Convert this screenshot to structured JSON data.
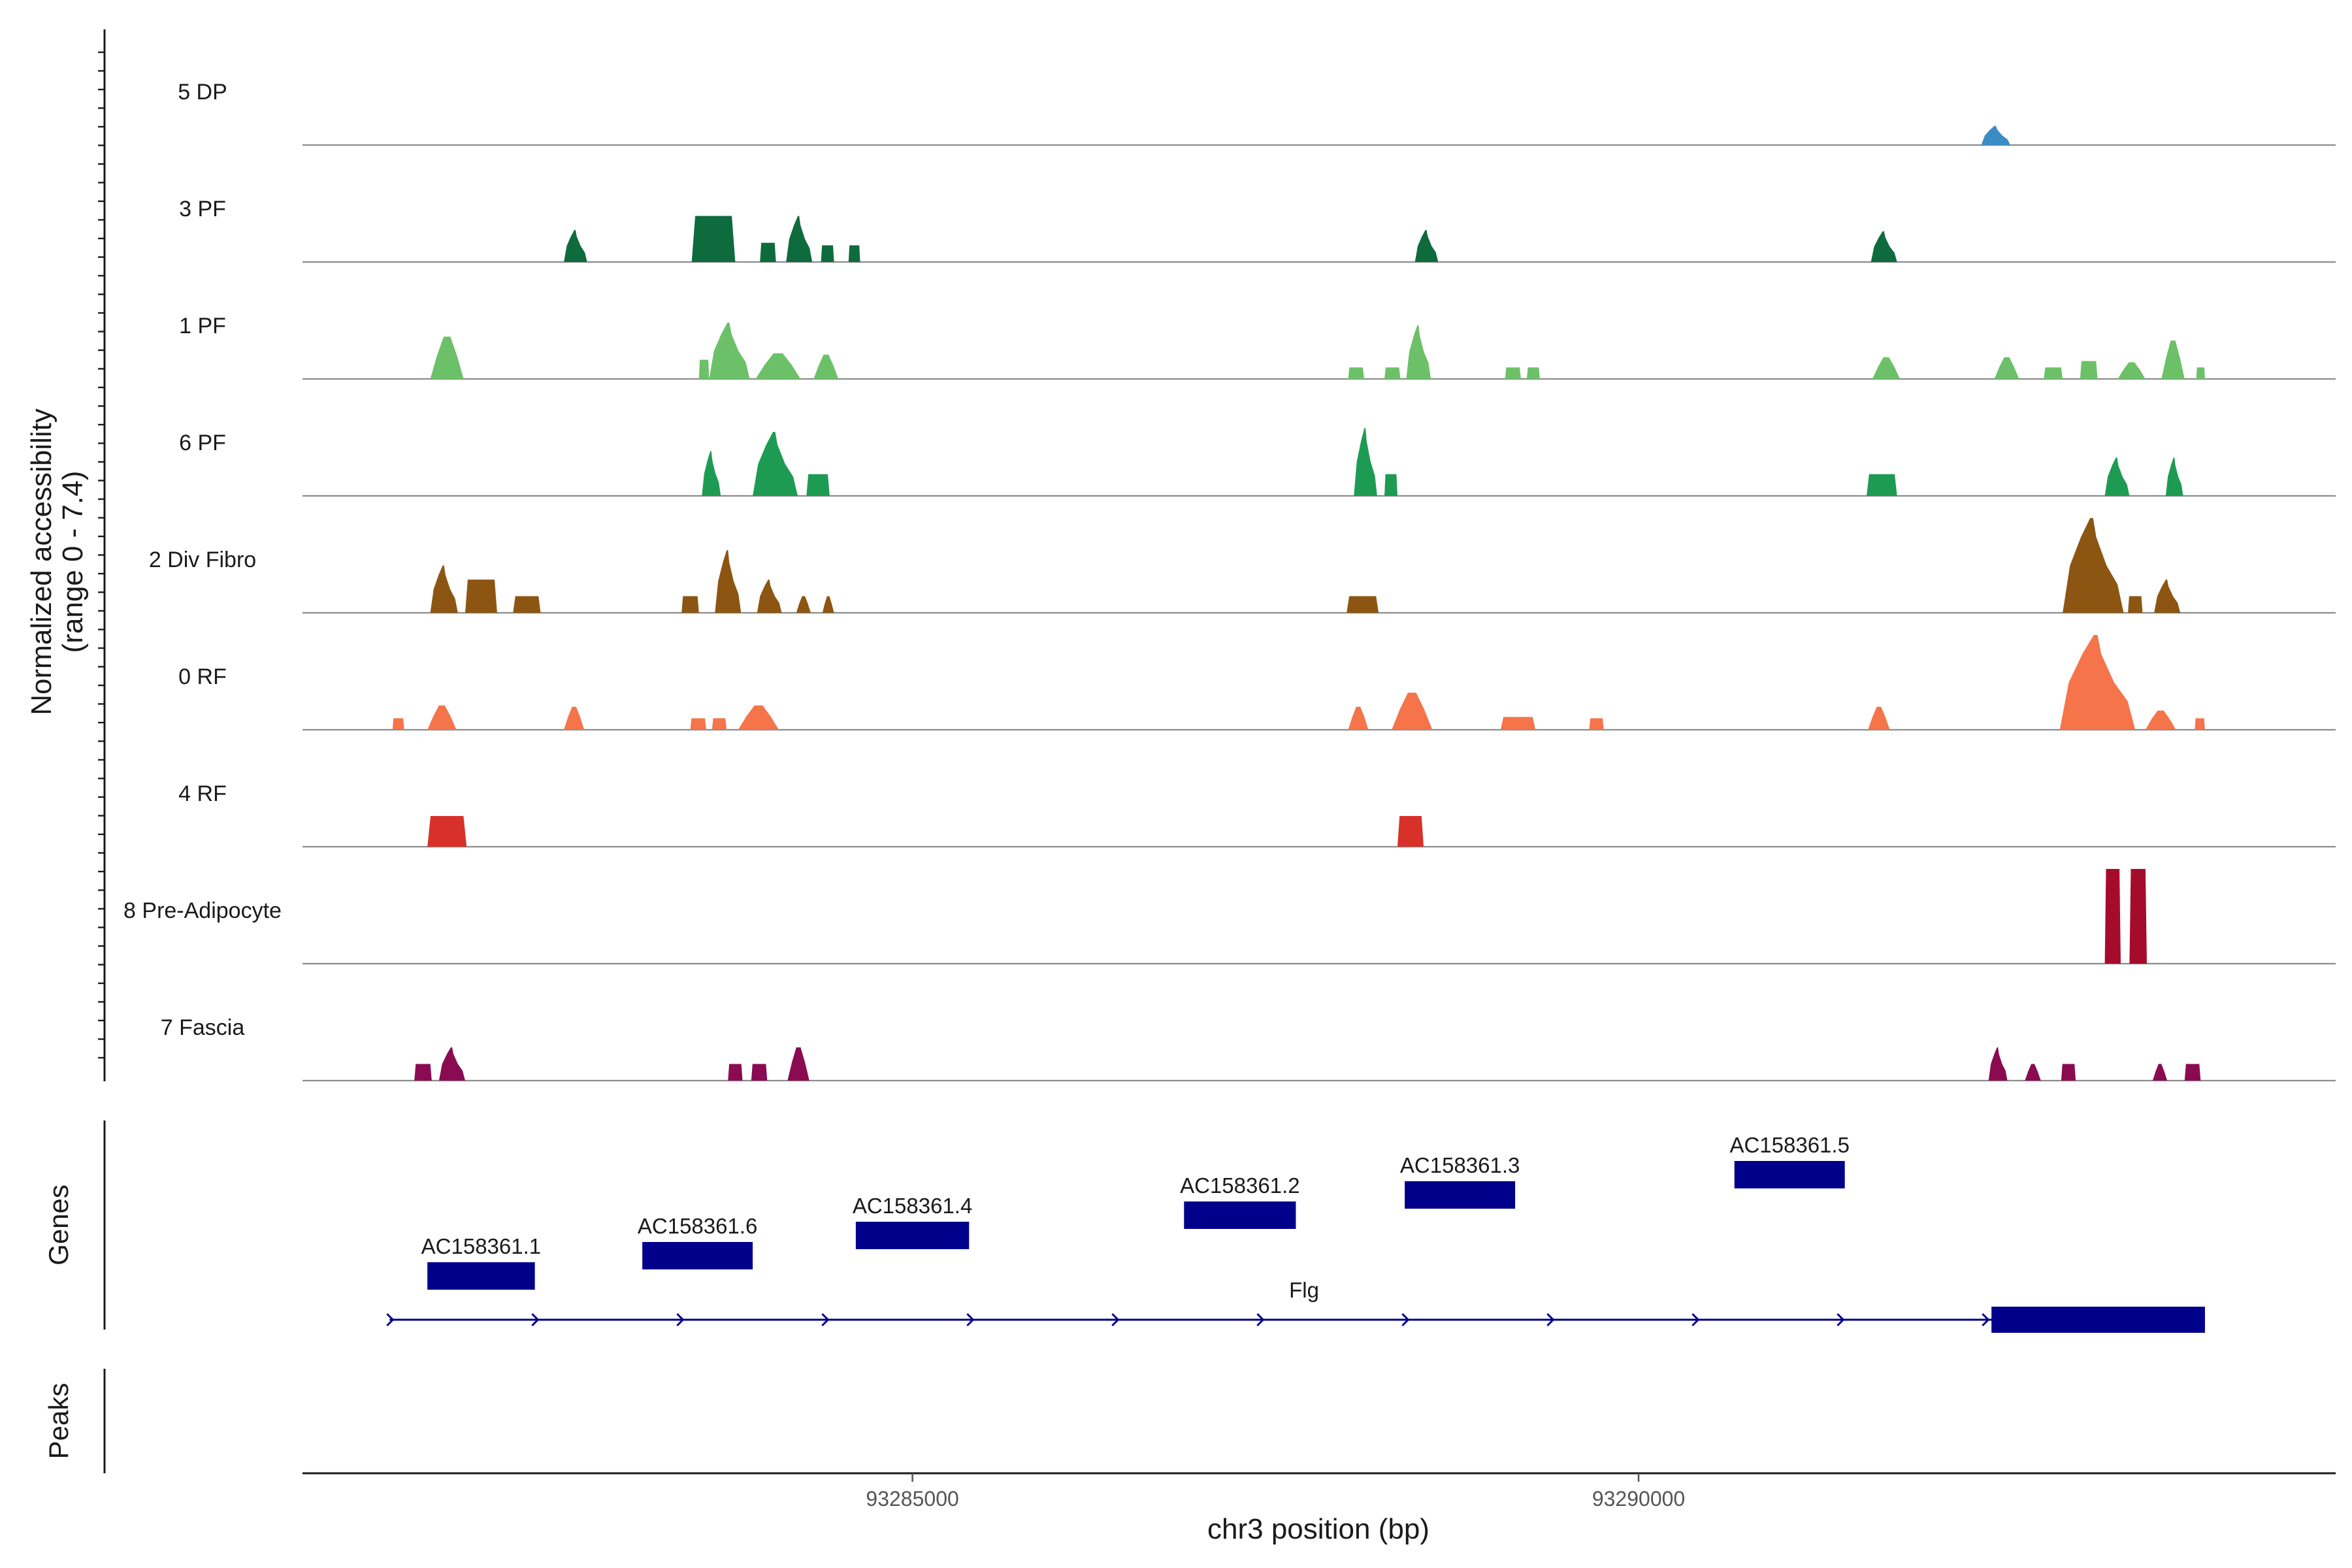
{
  "chart_data": {
    "type": "area",
    "xlabel": "chr3 position (bp)",
    "ylabel_line1": "Normalized accessibility",
    "ylabel_line2": "(range 0 - 7.4)",
    "genes_label": "Genes",
    "peaks_label": "Peaks",
    "xlim": [
      93280800,
      93294800
    ],
    "x_ticks": [
      93285000,
      93290000
    ],
    "x_tick_labels": [
      "93285000",
      "93290000"
    ],
    "ylim": [
      0,
      7.4
    ],
    "tracks": [
      {
        "name": "5 DP",
        "color": "#3a8cc4",
        "peaks": [
          {
            "start": 93292360,
            "end": 93292560,
            "height": 1.5,
            "shape": "spike"
          }
        ]
      },
      {
        "name": "3 PF",
        "color": "#0e6b3d",
        "peaks": [
          {
            "start": 93282600,
            "end": 93282760,
            "height": 2.5,
            "shape": "spike"
          },
          {
            "start": 93283480,
            "end": 93283780,
            "height": 3.6,
            "shape": "block"
          },
          {
            "start": 93283950,
            "end": 93284060,
            "height": 1.5,
            "shape": "block"
          },
          {
            "start": 93284130,
            "end": 93284310,
            "height": 3.6,
            "shape": "spike"
          },
          {
            "start": 93284370,
            "end": 93284460,
            "height": 1.3,
            "shape": "block"
          },
          {
            "start": 93284560,
            "end": 93284640,
            "height": 1.3,
            "shape": "block"
          },
          {
            "start": 93288460,
            "end": 93288620,
            "height": 2.5,
            "shape": "spike"
          },
          {
            "start": 93291600,
            "end": 93291780,
            "height": 2.4,
            "shape": "spike"
          }
        ]
      },
      {
        "name": "1 PF",
        "color": "#6cc168",
        "peaks": [
          {
            "start": 93281680,
            "end": 93281910,
            "height": 3.3,
            "shape": "tri"
          },
          {
            "start": 93283530,
            "end": 93283600,
            "height": 1.5,
            "shape": "block"
          },
          {
            "start": 93283600,
            "end": 93283880,
            "height": 4.4,
            "shape": "spike"
          },
          {
            "start": 93283920,
            "end": 93284230,
            "height": 2.0,
            "shape": "tri"
          },
          {
            "start": 93284320,
            "end": 93284490,
            "height": 1.9,
            "shape": "tri"
          },
          {
            "start": 93288000,
            "end": 93288110,
            "height": 0.9,
            "shape": "block"
          },
          {
            "start": 93288250,
            "end": 93288360,
            "height": 0.9,
            "shape": "block"
          },
          {
            "start": 93288400,
            "end": 93288570,
            "height": 4.2,
            "shape": "spike"
          },
          {
            "start": 93289080,
            "end": 93289190,
            "height": 0.9,
            "shape": "block"
          },
          {
            "start": 93289230,
            "end": 93289320,
            "height": 0.9,
            "shape": "block"
          },
          {
            "start": 93291610,
            "end": 93291800,
            "height": 1.7,
            "shape": "tri"
          },
          {
            "start": 93292450,
            "end": 93292620,
            "height": 1.7,
            "shape": "tri"
          },
          {
            "start": 93292790,
            "end": 93292920,
            "height": 0.9,
            "shape": "block"
          },
          {
            "start": 93293040,
            "end": 93293160,
            "height": 1.4,
            "shape": "block"
          },
          {
            "start": 93293300,
            "end": 93293490,
            "height": 1.3,
            "shape": "tri"
          },
          {
            "start": 93293600,
            "end": 93293760,
            "height": 3.0,
            "shape": "tri"
          },
          {
            "start": 93293840,
            "end": 93293900,
            "height": 0.9,
            "shape": "block"
          }
        ]
      },
      {
        "name": "6 PF",
        "color": "#1e9b52",
        "peaks": [
          {
            "start": 93283550,
            "end": 93283680,
            "height": 3.5,
            "shape": "spike"
          },
          {
            "start": 93283900,
            "end": 93284210,
            "height": 5.0,
            "shape": "spike"
          },
          {
            "start": 93284270,
            "end": 93284430,
            "height": 1.7,
            "shape": "block"
          },
          {
            "start": 93288040,
            "end": 93288200,
            "height": 5.3,
            "shape": "spike"
          },
          {
            "start": 93288250,
            "end": 93288340,
            "height": 1.7,
            "shape": "block"
          },
          {
            "start": 93291570,
            "end": 93291780,
            "height": 1.7,
            "shape": "block"
          },
          {
            "start": 93293210,
            "end": 93293380,
            "height": 3.0,
            "shape": "spike"
          },
          {
            "start": 93293630,
            "end": 93293750,
            "height": 3.0,
            "shape": "spike"
          }
        ]
      },
      {
        "name": "2 Div Fibro",
        "color": "#8c5612",
        "peaks": [
          {
            "start": 93281680,
            "end": 93281870,
            "height": 3.7,
            "shape": "spike"
          },
          {
            "start": 93281920,
            "end": 93282140,
            "height": 2.6,
            "shape": "block"
          },
          {
            "start": 93282250,
            "end": 93282440,
            "height": 1.3,
            "shape": "block"
          },
          {
            "start": 93283410,
            "end": 93283530,
            "height": 1.3,
            "shape": "block"
          },
          {
            "start": 93283640,
            "end": 93283820,
            "height": 4.9,
            "shape": "spike"
          },
          {
            "start": 93283930,
            "end": 93284100,
            "height": 2.6,
            "shape": "spike"
          },
          {
            "start": 93284200,
            "end": 93284300,
            "height": 1.3,
            "shape": "tri"
          },
          {
            "start": 93284380,
            "end": 93284460,
            "height": 1.3,
            "shape": "tri"
          },
          {
            "start": 93287990,
            "end": 93288210,
            "height": 1.3,
            "shape": "block"
          },
          {
            "start": 93292920,
            "end": 93293340,
            "height": 7.4,
            "shape": "spike"
          },
          {
            "start": 93293370,
            "end": 93293470,
            "height": 1.3,
            "shape": "block"
          },
          {
            "start": 93293550,
            "end": 93293730,
            "height": 2.6,
            "shape": "spike"
          }
        ]
      },
      {
        "name": "0 RF",
        "color": "#f5744a",
        "peaks": [
          {
            "start": 93281420,
            "end": 93281500,
            "height": 0.9,
            "shape": "block"
          },
          {
            "start": 93281660,
            "end": 93281860,
            "height": 1.9,
            "shape": "tri"
          },
          {
            "start": 93282600,
            "end": 93282740,
            "height": 1.8,
            "shape": "tri"
          },
          {
            "start": 93283470,
            "end": 93283580,
            "height": 0.9,
            "shape": "block"
          },
          {
            "start": 93283620,
            "end": 93283720,
            "height": 0.9,
            "shape": "block"
          },
          {
            "start": 93283800,
            "end": 93284080,
            "height": 1.9,
            "shape": "tri"
          },
          {
            "start": 93288000,
            "end": 93288140,
            "height": 1.8,
            "shape": "tri"
          },
          {
            "start": 93288300,
            "end": 93288580,
            "height": 2.9,
            "shape": "tri"
          },
          {
            "start": 93289050,
            "end": 93289290,
            "height": 1.0,
            "shape": "block"
          },
          {
            "start": 93289660,
            "end": 93289760,
            "height": 0.9,
            "shape": "block"
          },
          {
            "start": 93291580,
            "end": 93291730,
            "height": 1.8,
            "shape": "tri"
          },
          {
            "start": 93292900,
            "end": 93293420,
            "height": 7.4,
            "shape": "spike"
          },
          {
            "start": 93293490,
            "end": 93293700,
            "height": 1.5,
            "shape": "tri"
          },
          {
            "start": 93293830,
            "end": 93293900,
            "height": 0.9,
            "shape": "block"
          }
        ]
      },
      {
        "name": "4 RF",
        "color": "#d7312a",
        "peaks": [
          {
            "start": 93281660,
            "end": 93281930,
            "height": 2.4,
            "shape": "block"
          },
          {
            "start": 93288340,
            "end": 93288520,
            "height": 2.4,
            "shape": "block"
          }
        ]
      },
      {
        "name": "8 Pre-Adipocyte",
        "color": "#a50c2c",
        "peaks": [
          {
            "start": 93293210,
            "end": 93293320,
            "height": 7.4,
            "shape": "block"
          },
          {
            "start": 93293380,
            "end": 93293500,
            "height": 7.4,
            "shape": "block"
          }
        ]
      },
      {
        "name": "7 Fascia",
        "color": "#8a0b52",
        "peaks": [
          {
            "start": 93281570,
            "end": 93281690,
            "height": 1.3,
            "shape": "block"
          },
          {
            "start": 93281740,
            "end": 93281920,
            "height": 2.6,
            "shape": "spike"
          },
          {
            "start": 93283730,
            "end": 93283830,
            "height": 1.3,
            "shape": "block"
          },
          {
            "start": 93283890,
            "end": 93284000,
            "height": 1.3,
            "shape": "block"
          },
          {
            "start": 93284140,
            "end": 93284290,
            "height": 2.6,
            "shape": "tri"
          },
          {
            "start": 93292410,
            "end": 93292540,
            "height": 2.6,
            "shape": "spike"
          },
          {
            "start": 93292660,
            "end": 93292770,
            "height": 1.3,
            "shape": "tri"
          },
          {
            "start": 93292910,
            "end": 93293010,
            "height": 1.3,
            "shape": "block"
          },
          {
            "start": 93293540,
            "end": 93293640,
            "height": 1.3,
            "shape": "tri"
          },
          {
            "start": 93293760,
            "end": 93293870,
            "height": 1.3,
            "shape": "block"
          }
        ]
      }
    ],
    "genes": [
      {
        "name": "AC158361.1",
        "start": 93281660,
        "end": 93282400,
        "row": 3
      },
      {
        "name": "AC158361.6",
        "start": 93283140,
        "end": 93283900,
        "row": 2
      },
      {
        "name": "AC158361.4",
        "start": 93284610,
        "end": 93285390,
        "row": 1
      },
      {
        "name": "AC158361.2",
        "start": 93286870,
        "end": 93287640,
        "row": 0
      },
      {
        "name": "AC158361.3",
        "start": 93288390,
        "end": 93289150,
        "row": -1
      },
      {
        "name": "AC158361.5",
        "start": 93290660,
        "end": 93291420,
        "row": -2
      }
    ],
    "transcript": {
      "name": "Flg",
      "start": 93281400,
      "end": 93293900,
      "strand": "+",
      "exons": [
        [
          93292430,
          93293900
        ]
      ]
    }
  },
  "colors": {
    "gene": "#00008b",
    "axis": "#1a1a1a",
    "baseline": "#8c8c8c"
  }
}
